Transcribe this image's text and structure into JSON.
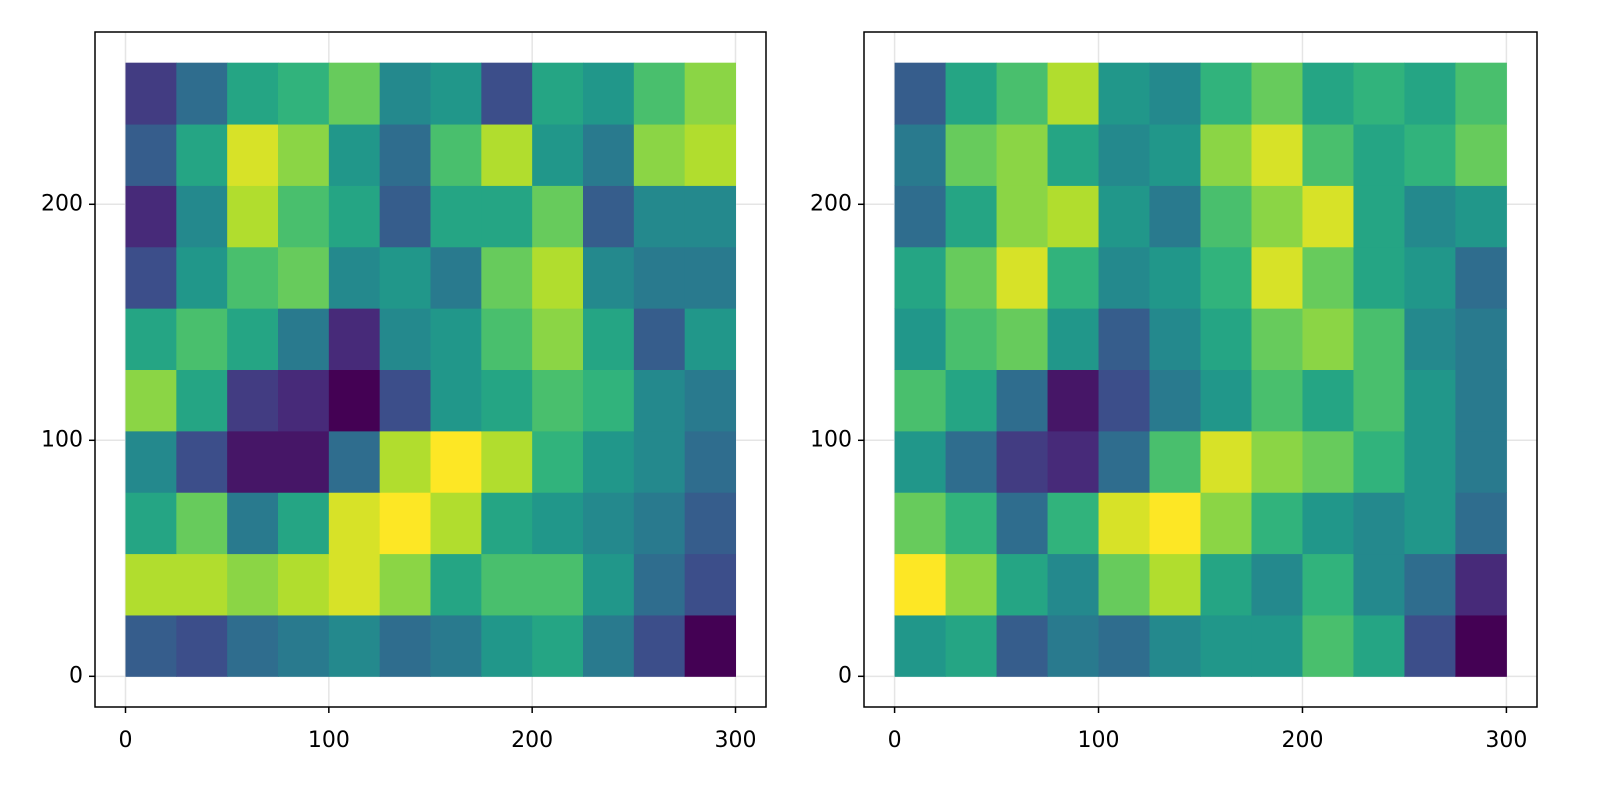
{
  "chart_data": [
    {
      "type": "heatmap",
      "colormap": "viridis",
      "grid": true,
      "xlim": [
        -15,
        315
      ],
      "ylim": [
        -13,
        273
      ],
      "xticks": [
        0,
        100,
        200,
        300
      ],
      "yticks": [
        0,
        100,
        200
      ],
      "xbins": [
        0,
        25,
        50,
        75,
        100,
        125,
        150,
        175,
        200,
        225,
        250,
        275,
        300
      ],
      "ybins": [
        0,
        26,
        52,
        78,
        104,
        130,
        156,
        182,
        208,
        234,
        260
      ],
      "values": [
        [
          0.35,
          0.3,
          0.4,
          0.45,
          0.5,
          0.4,
          0.45,
          0.55,
          0.6,
          0.45,
          0.3,
          0.1
        ],
        [
          0.85,
          0.85,
          0.8,
          0.85,
          0.9,
          0.8,
          0.6,
          0.7,
          0.7,
          0.55,
          0.4,
          0.3
        ],
        [
          0.6,
          0.75,
          0.45,
          0.6,
          0.9,
          0.95,
          0.85,
          0.6,
          0.55,
          0.5,
          0.45,
          0.35
        ],
        [
          0.5,
          0.3,
          0.15,
          0.15,
          0.4,
          0.85,
          0.95,
          0.85,
          0.65,
          0.55,
          0.5,
          0.4
        ],
        [
          0.8,
          0.6,
          0.25,
          0.2,
          0.1,
          0.3,
          0.55,
          0.6,
          0.7,
          0.65,
          0.5,
          0.45
        ],
        [
          0.6,
          0.7,
          0.6,
          0.45,
          0.2,
          0.5,
          0.55,
          0.7,
          0.8,
          0.6,
          0.35,
          0.55
        ],
        [
          0.3,
          0.55,
          0.7,
          0.75,
          0.5,
          0.55,
          0.45,
          0.75,
          0.85,
          0.5,
          0.45,
          0.45
        ],
        [
          0.2,
          0.5,
          0.85,
          0.7,
          0.6,
          0.35,
          0.6,
          0.6,
          0.75,
          0.35,
          0.5,
          0.5
        ],
        [
          0.35,
          0.6,
          0.9,
          0.8,
          0.55,
          0.4,
          0.7,
          0.85,
          0.55,
          0.45,
          0.8,
          0.85
        ],
        [
          0.25,
          0.4,
          0.6,
          0.65,
          0.75,
          0.5,
          0.55,
          0.3,
          0.6,
          0.55,
          0.7,
          0.8
        ]
      ]
    },
    {
      "type": "heatmap",
      "colormap": "viridis",
      "grid": true,
      "xlim": [
        -15,
        315
      ],
      "ylim": [
        -13,
        273
      ],
      "xticks": [
        0,
        100,
        200,
        300
      ],
      "yticks": [
        0,
        100,
        200
      ],
      "xbins": [
        0,
        25,
        50,
        75,
        100,
        125,
        150,
        175,
        200,
        225,
        250,
        275,
        300
      ],
      "ybins": [
        0,
        26,
        52,
        78,
        104,
        130,
        156,
        182,
        208,
        234,
        260
      ],
      "values": [
        [
          0.5,
          0.55,
          0.3,
          0.4,
          0.35,
          0.45,
          0.5,
          0.5,
          0.65,
          0.55,
          0.25,
          0.05
        ],
        [
          0.9,
          0.75,
          0.55,
          0.45,
          0.7,
          0.8,
          0.55,
          0.45,
          0.6,
          0.45,
          0.35,
          0.15
        ],
        [
          0.7,
          0.6,
          0.35,
          0.6,
          0.85,
          0.9,
          0.75,
          0.6,
          0.5,
          0.45,
          0.5,
          0.35
        ],
        [
          0.5,
          0.35,
          0.2,
          0.15,
          0.35,
          0.65,
          0.85,
          0.75,
          0.7,
          0.6,
          0.5,
          0.4
        ],
        [
          0.65,
          0.55,
          0.35,
          0.1,
          0.25,
          0.4,
          0.5,
          0.65,
          0.55,
          0.65,
          0.5,
          0.4
        ],
        [
          0.5,
          0.65,
          0.7,
          0.5,
          0.3,
          0.45,
          0.55,
          0.7,
          0.75,
          0.65,
          0.45,
          0.4
        ],
        [
          0.55,
          0.7,
          0.85,
          0.6,
          0.45,
          0.5,
          0.6,
          0.85,
          0.7,
          0.55,
          0.5,
          0.35
        ],
        [
          0.35,
          0.55,
          0.75,
          0.8,
          0.5,
          0.4,
          0.65,
          0.75,
          0.85,
          0.55,
          0.45,
          0.5
        ],
        [
          0.4,
          0.7,
          0.75,
          0.55,
          0.45,
          0.5,
          0.75,
          0.85,
          0.65,
          0.55,
          0.6,
          0.7
        ],
        [
          0.3,
          0.55,
          0.65,
          0.8,
          0.5,
          0.45,
          0.6,
          0.7,
          0.55,
          0.6,
          0.55,
          0.65
        ]
      ]
    }
  ]
}
